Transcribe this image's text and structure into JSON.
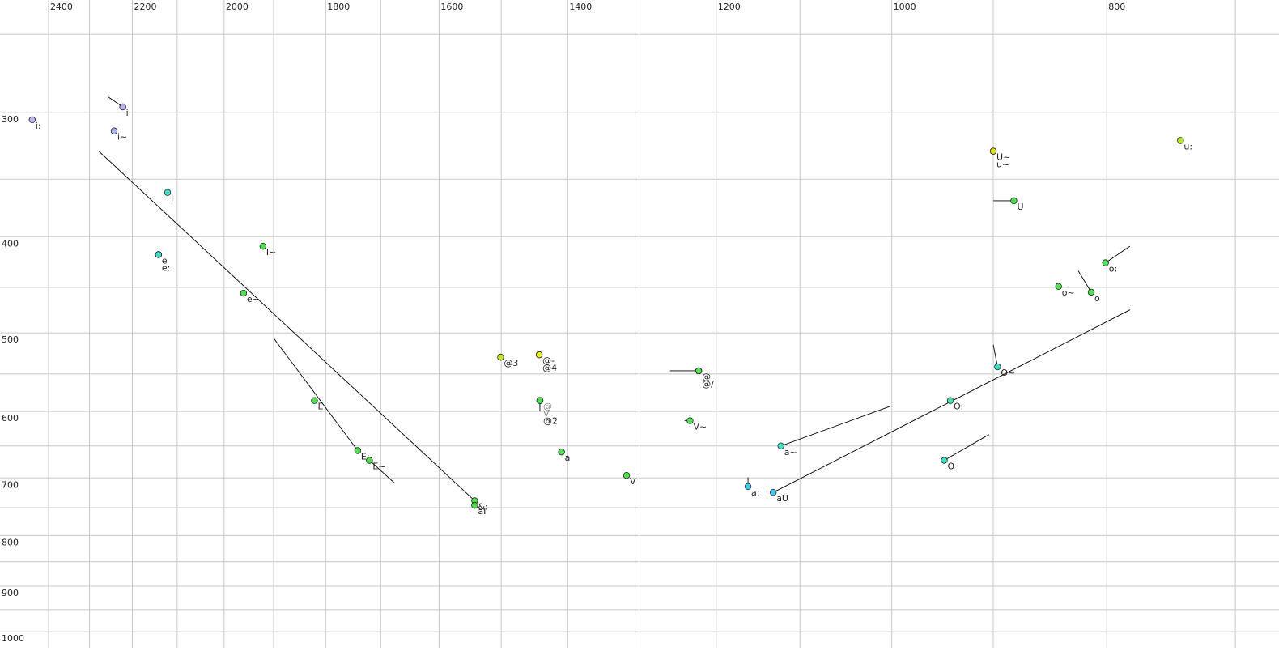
{
  "chart_data": {
    "type": "scatter",
    "x_log": true,
    "y_log": true,
    "grid": true,
    "xlim": [
      2524,
      669
    ],
    "ylim": [
      231,
      1038
    ],
    "xticks": [
      2400,
      2200,
      2000,
      1800,
      1600,
      1400,
      1200,
      1000,
      800
    ],
    "yticks": [
      300,
      400,
      500,
      600,
      700,
      800,
      900,
      1000
    ],
    "x_gridlines": [
      2400,
      2300,
      2200,
      2100,
      2000,
      1900,
      1800,
      1700,
      1600,
      1500,
      1400,
      1300,
      1200,
      1100,
      1000,
      900,
      800,
      700
    ],
    "y_gridlines": [
      250,
      300,
      350,
      400,
      450,
      500,
      550,
      600,
      650,
      700,
      750,
      800,
      850,
      900,
      950,
      1000
    ],
    "points": [
      {
        "label": "i:",
        "color": "#b4b4f0",
        "x": 2441,
        "y": 305
      },
      {
        "label": "i",
        "color": "#b4b4f0",
        "x": 2222,
        "y": 296,
        "trail": [
          2257,
          289
        ]
      },
      {
        "label": "i~",
        "color": "#b4b4f0",
        "x": 2242,
        "y": 313
      },
      {
        "label": "I",
        "color": "#40e0c8",
        "x": 2121,
        "y": 361
      },
      {
        "label": "e",
        "color": "#40e0c8",
        "x": 2141,
        "y": 417
      },
      {
        "label": "e:",
        "color": "#40e0c8",
        "x": 2141,
        "y": 417
      },
      {
        "label": "I~",
        "color": "#50e050",
        "x": 1921,
        "y": 409
      },
      {
        "label": "e~",
        "color": "#50e050",
        "x": 1960,
        "y": 456
      },
      {
        "label": "E",
        "color": "#50e050",
        "x": 1821,
        "y": 585
      },
      {
        "label": "E:",
        "color": "#50e050",
        "x": 1741,
        "y": 657,
        "trail": [
          1900,
          506
        ]
      },
      {
        "label": "E~",
        "color": "#50e050",
        "x": 1720,
        "y": 672,
        "trail": [
          1675,
          709
        ]
      },
      {
        "label": "&:",
        "color": "#50e050",
        "x": 1542,
        "y": 738,
        "trail": [
          2278,
          328
        ]
      },
      {
        "label": "aI",
        "color": "#50e050",
        "x": 1542,
        "y": 746
      },
      {
        "label": "@3",
        "color": "#c8e828",
        "x": 1501,
        "y": 529
      },
      {
        "label": "@-",
        "color": "#e8f028",
        "x": 1442,
        "y": 526
      },
      {
        "label": "@4",
        "color": "#e8f028",
        "x": 1442,
        "y": 526
      },
      {
        "label": "@",
        "color": "#50e050",
        "label_color": "#888888",
        "x": 1441,
        "y": 585,
        "trail": [
          1441,
          600
        ]
      },
      {
        "label": "V",
        "color": "#50e050",
        "label_color": "#888888",
        "x": 1441,
        "y": 585
      },
      {
        "label": "@2",
        "color": "#50e050",
        "x": 1441,
        "y": 585
      },
      {
        "label": "a",
        "color": "#50e050",
        "x": 1409,
        "y": 659
      },
      {
        "label": "V",
        "color": "#50e050",
        "x": 1317,
        "y": 696
      },
      {
        "label": "@",
        "color": "#50e050",
        "x": 1222,
        "y": 546,
        "trail": [
          1259,
          546
        ]
      },
      {
        "label": "@/",
        "color": "#50e050",
        "x": 1222,
        "y": 546
      },
      {
        "label": "V~",
        "color": "#50e050",
        "x": 1233,
        "y": 613,
        "trail": [
          1240,
          613
        ]
      },
      {
        "label": "a:",
        "color": "#48c8f0",
        "x": 1161,
        "y": 714,
        "trail": [
          1161,
          699
        ]
      },
      {
        "label": "aU",
        "color": "#48c8f0",
        "x": 1131,
        "y": 724,
        "trail": [
          781,
          474
        ]
      },
      {
        "label": "a~",
        "color": "#40e0c8",
        "x": 1122,
        "y": 650,
        "trail": [
          1002,
          593
        ]
      },
      {
        "label": "O:",
        "color": "#48e0a0",
        "x": 941,
        "y": 585
      },
      {
        "label": "O",
        "color": "#40e0c8",
        "x": 947,
        "y": 672,
        "trail": [
          904,
          633
        ]
      },
      {
        "label": "O~",
        "color": "#40e0c8",
        "x": 896,
        "y": 541,
        "trail": [
          900,
          514
        ]
      },
      {
        "label": "U~",
        "color": "#e0e020",
        "x": 900,
        "y": 328
      },
      {
        "label": "u~",
        "color": "#e0e020",
        "x": 900,
        "y": 328
      },
      {
        "label": "U",
        "color": "#50e050",
        "x": 881,
        "y": 368,
        "trail": [
          900,
          368
        ]
      },
      {
        "label": "u:",
        "color": "#b8e828",
        "x": 741,
        "y": 320
      },
      {
        "label": "o~",
        "color": "#50e050",
        "x": 841,
        "y": 449
      },
      {
        "label": "o",
        "color": "#50e050",
        "x": 813,
        "y": 455,
        "trail": [
          824,
          433
        ]
      },
      {
        "label": "o:",
        "color": "#50e050",
        "x": 801,
        "y": 425,
        "trail": [
          781,
          409
        ]
      }
    ]
  }
}
